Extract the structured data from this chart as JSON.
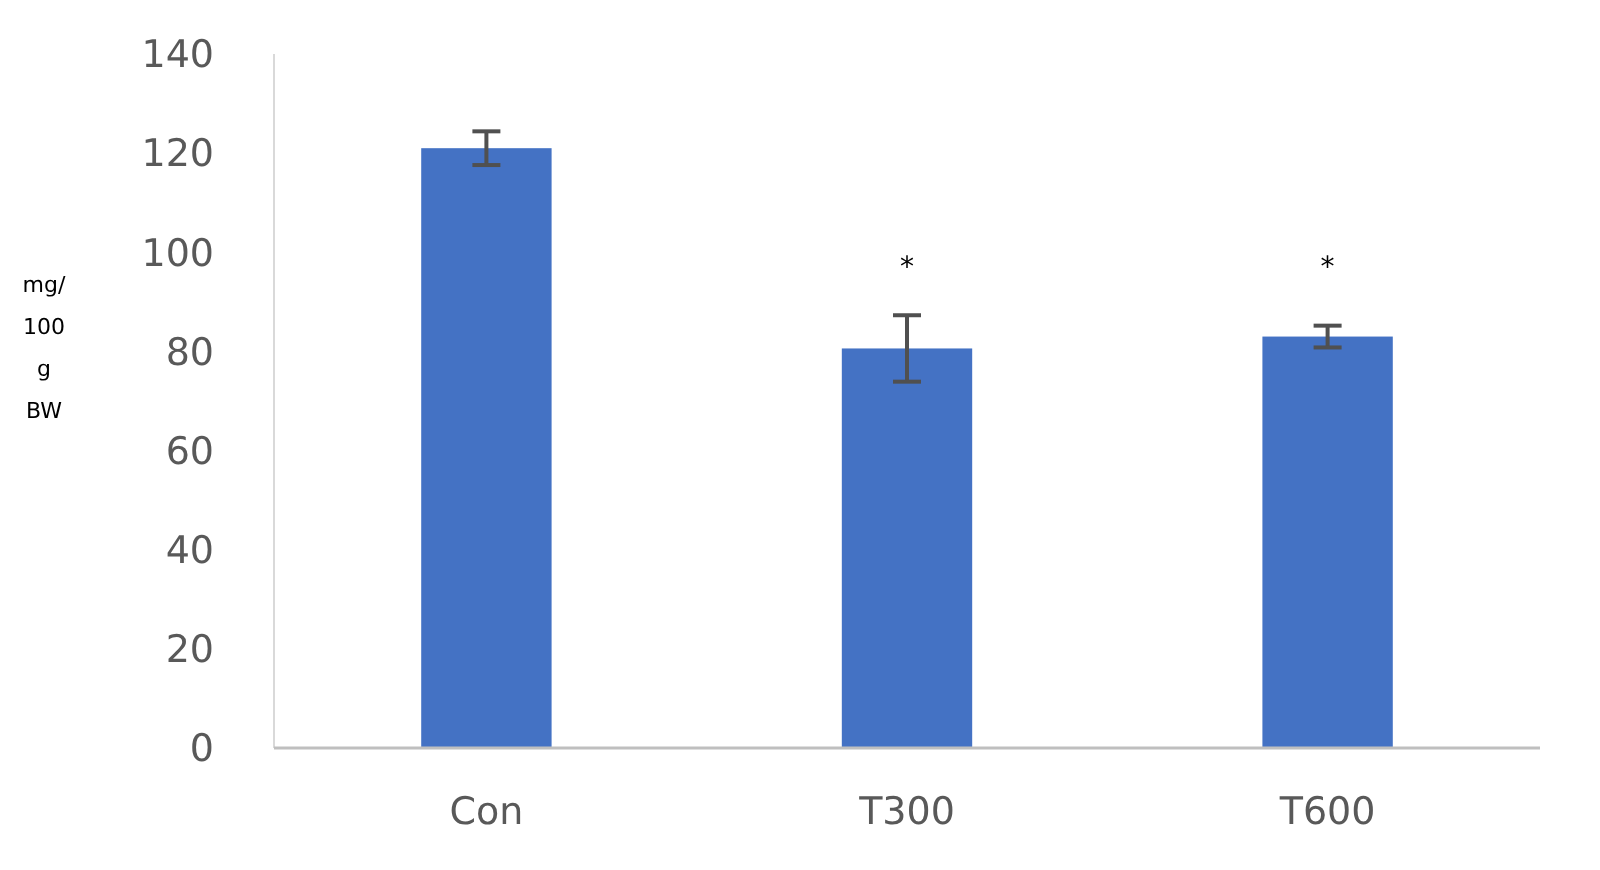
{
  "chart_data": {
    "type": "bar",
    "categories": [
      "Con",
      "T300",
      "T600"
    ],
    "values": [
      121,
      80.6,
      83
    ],
    "errors": [
      3.4,
      6.7,
      2.2
    ],
    "color": "#4472c4",
    "ylabel": "mg/ 100 g BW",
    "ylim": [
      0,
      140
    ],
    "yticks": [
      0,
      20,
      40,
      60,
      80,
      100,
      120,
      140
    ],
    "grid": false,
    "annotations": [
      "*",
      "*"
    ]
  }
}
